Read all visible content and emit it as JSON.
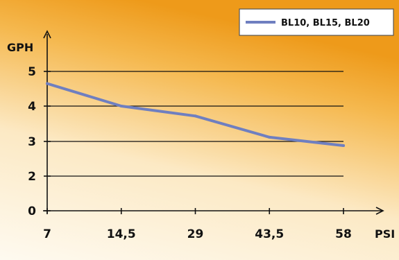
{
  "chart_data": {
    "type": "line",
    "xlabel": "PSI",
    "ylabel": "GPH",
    "x": [
      "7",
      "14,5",
      "29",
      "43,5",
      "58"
    ],
    "y_ticks": [
      0,
      2,
      3,
      4,
      5
    ],
    "series": [
      {
        "name": "BL10, BL15, BL20",
        "values": [
          4.65,
          4.0,
          3.72,
          3.12,
          2.88
        ]
      }
    ],
    "grid": true,
    "legend": "top-right",
    "colors": {
      "series": "#6f7fc0",
      "background_light": "#fdf3dc",
      "background_dark": "#ee9a1a"
    }
  }
}
